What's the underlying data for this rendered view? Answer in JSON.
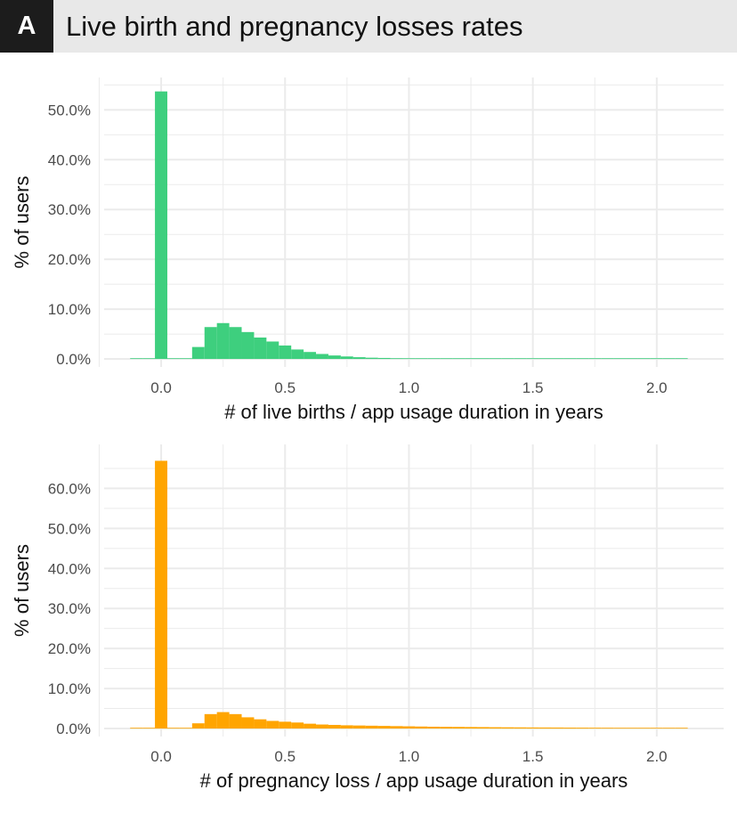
{
  "header": {
    "panel_label": "A",
    "title": "Live birth and pregnancy losses rates"
  },
  "colors": {
    "live_births": "#3ecf7e",
    "pregnancy_loss": "#ffa500",
    "grid": "#ebebeb",
    "header_bg": "#e8e8e8",
    "tag_bg": "#1c1c1c"
  },
  "chart_data": [
    {
      "type": "bar",
      "chart_kind": "histogram",
      "xlabel": "# of live births / app usage duration in years",
      "ylabel": "% of users",
      "xlim": [
        -0.23,
        2.27
      ],
      "ylim": [
        -1.6,
        56.5
      ],
      "grid": true,
      "x_ticks": [
        0.0,
        0.5,
        1.0,
        1.5,
        2.0
      ],
      "x_tick_labels": [
        "0.0",
        "0.5",
        "1.0",
        "1.5",
        "2.0"
      ],
      "y_ticks": [
        0,
        10,
        20,
        30,
        40,
        50
      ],
      "y_tick_labels": [
        "0.0%",
        "10.0%",
        "20.0%",
        "30.0%",
        "40.0%",
        "50.0%"
      ],
      "bin_width": 0.05,
      "x": [
        -0.1,
        -0.05,
        0.0,
        0.05,
        0.1,
        0.15,
        0.2,
        0.25,
        0.3,
        0.35,
        0.4,
        0.45,
        0.5,
        0.55,
        0.6,
        0.65,
        0.7,
        0.75,
        0.8,
        0.85,
        0.9,
        0.95,
        1.0,
        1.05,
        1.1,
        1.15,
        1.2,
        1.25,
        1.3,
        1.35,
        1.4,
        1.45,
        1.5,
        1.55,
        1.6,
        1.65,
        1.7,
        1.75,
        1.8,
        1.85,
        1.9,
        1.95,
        2.0,
        2.05,
        2.1
      ],
      "values": [
        0.0,
        0.0,
        53.7,
        0.0,
        0.1,
        2.4,
        6.4,
        7.2,
        6.4,
        5.4,
        4.3,
        3.5,
        2.7,
        1.9,
        1.4,
        1.0,
        0.7,
        0.5,
        0.35,
        0.25,
        0.2,
        0.15,
        0.12,
        0.1,
        0.08,
        0.07,
        0.06,
        0.05,
        0.04,
        0.04,
        0.03,
        0.03,
        0.03,
        0.02,
        0.02,
        0.02,
        0.02,
        0.02,
        0.02,
        0.01,
        0.01,
        0.01,
        0.01,
        0.01,
        0.01
      ]
    },
    {
      "type": "bar",
      "chart_kind": "histogram",
      "xlabel": "# of pregnancy loss / app usage duration in years",
      "ylabel": "% of users",
      "xlim": [
        -0.23,
        2.27
      ],
      "ylim": [
        -2.0,
        71.0
      ],
      "grid": true,
      "x_ticks": [
        0.0,
        0.5,
        1.0,
        1.5,
        2.0
      ],
      "x_tick_labels": [
        "0.0",
        "0.5",
        "1.0",
        "1.5",
        "2.0"
      ],
      "y_ticks": [
        0,
        10,
        20,
        30,
        40,
        50,
        60
      ],
      "y_tick_labels": [
        "0.0%",
        "10.0%",
        "20.0%",
        "30.0%",
        "40.0%",
        "50.0%",
        "60.0%"
      ],
      "bin_width": 0.05,
      "x": [
        -0.1,
        -0.05,
        0.0,
        0.05,
        0.1,
        0.15,
        0.2,
        0.25,
        0.3,
        0.35,
        0.4,
        0.45,
        0.5,
        0.55,
        0.6,
        0.65,
        0.7,
        0.75,
        0.8,
        0.85,
        0.9,
        0.95,
        1.0,
        1.05,
        1.1,
        1.15,
        1.2,
        1.25,
        1.3,
        1.35,
        1.4,
        1.45,
        1.5,
        1.55,
        1.6,
        1.65,
        1.7,
        1.75,
        1.8,
        1.85,
        1.9,
        1.95,
        2.0,
        2.05,
        2.1
      ],
      "values": [
        0.0,
        0.0,
        66.9,
        0.0,
        0.1,
        1.3,
        3.6,
        4.1,
        3.6,
        2.8,
        2.3,
        1.9,
        1.7,
        1.5,
        1.2,
        1.0,
        0.9,
        0.8,
        0.75,
        0.7,
        0.65,
        0.6,
        0.55,
        0.5,
        0.45,
        0.42,
        0.4,
        0.37,
        0.35,
        0.32,
        0.3,
        0.28,
        0.26,
        0.25,
        0.24,
        0.22,
        0.21,
        0.2,
        0.19,
        0.18,
        0.17,
        0.16,
        0.15,
        0.14,
        0.13
      ]
    }
  ]
}
